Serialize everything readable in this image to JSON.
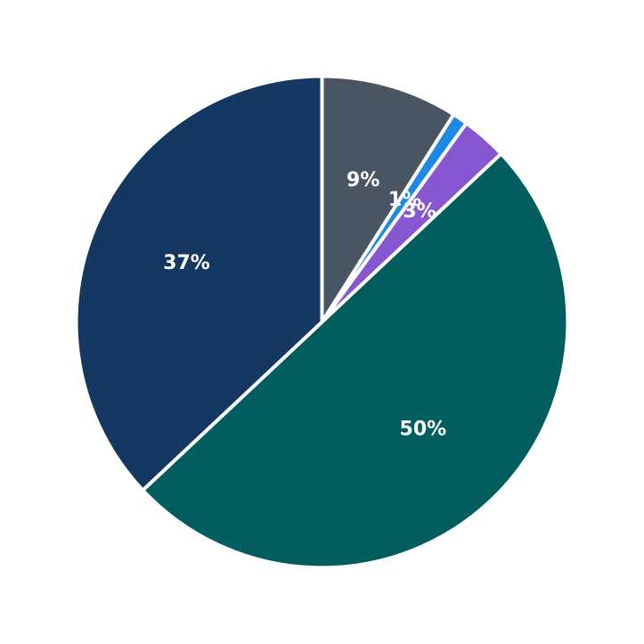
{
  "chart_data": {
    "type": "pie",
    "title": "",
    "start_angle_deg": 90,
    "direction": "clockwise",
    "slices": [
      {
        "value": 9,
        "label": "9%",
        "color": "#4a5563"
      },
      {
        "value": 1,
        "label": "1%",
        "color": "#1e88e5"
      },
      {
        "value": 3,
        "label": "3%",
        "color": "#8657d1"
      },
      {
        "value": 50,
        "label": "50%",
        "color": "#025e5e"
      },
      {
        "value": 37,
        "label": "37%",
        "color": "#143861"
      }
    ]
  }
}
